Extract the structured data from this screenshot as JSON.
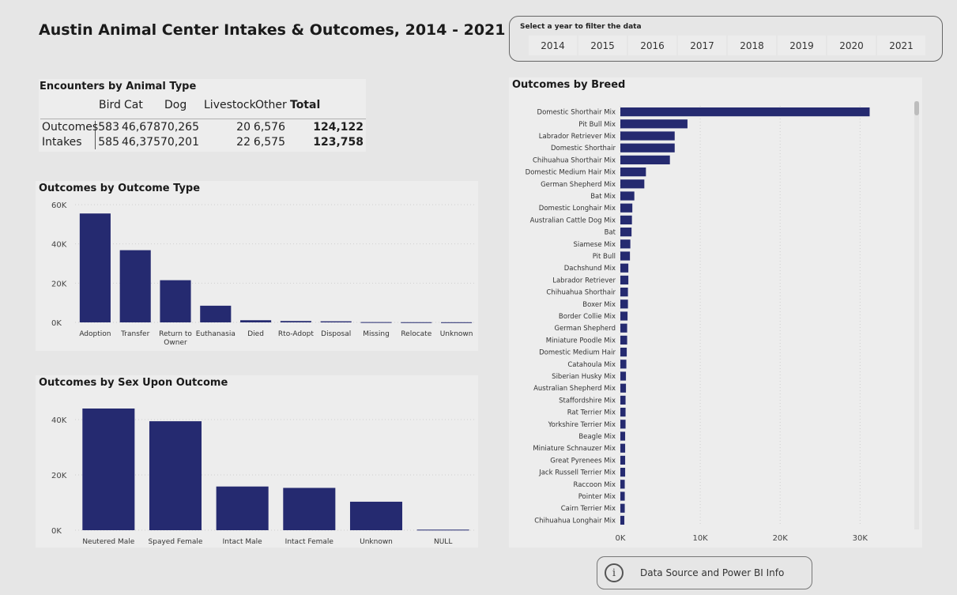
{
  "title": "Austin Animal Center Intakes & Outcomes, 2014 - 2021",
  "slicer": {
    "label": "Select a year to filter the data",
    "years": [
      "2014",
      "2015",
      "2016",
      "2017",
      "2018",
      "2019",
      "2020",
      "2021"
    ]
  },
  "encounters": {
    "title": "Encounters by Animal Type",
    "headers": [
      "Bird",
      "Cat",
      "Dog",
      "Livestock",
      "Other",
      "Total"
    ],
    "rows": [
      {
        "label": "Outcomes",
        "values": [
          "583",
          "46,678",
          "70,265",
          "20",
          "6,576",
          "124,122"
        ]
      },
      {
        "label": "Intakes",
        "values": [
          "585",
          "46,375",
          "70,201",
          "22",
          "6,575",
          "123,758"
        ]
      }
    ]
  },
  "info_button": {
    "label": "Data Source and Power BI Info",
    "icon": "info-icon"
  },
  "colors": {
    "bar": "#252a70",
    "grid": "#cfcfcf"
  },
  "chart_data": [
    {
      "id": "outcome-type",
      "type": "bar",
      "title": "Outcomes by Outcome Type",
      "categories": [
        "Adoption",
        "Transfer",
        "Return to Owner",
        "Euthanasia",
        "Died",
        "Rto-Adopt",
        "Disposal",
        "Missing",
        "Relocate",
        "Unknown"
      ],
      "values": [
        55500,
        36800,
        21500,
        8500,
        1100,
        700,
        550,
        150,
        100,
        80
      ],
      "yticks": [
        "0K",
        "20K",
        "40K",
        "60K"
      ],
      "ylim": [
        0,
        60000
      ]
    },
    {
      "id": "sex",
      "type": "bar",
      "title": "Outcomes by Sex Upon Outcome",
      "categories": [
        "Neutered Male",
        "Spayed Female",
        "Intact Male",
        "Intact Female",
        "Unknown",
        "NULL"
      ],
      "values": [
        44000,
        39400,
        15800,
        15300,
        10300,
        200
      ],
      "yticks": [
        "0K",
        "20K",
        "40K"
      ],
      "ylim": [
        0,
        46000
      ]
    },
    {
      "id": "breed",
      "type": "bar",
      "orientation": "horizontal",
      "title": "Outcomes by Breed",
      "categories": [
        "Domestic Shorthair Mix",
        "Pit Bull Mix",
        "Labrador Retriever Mix",
        "Domestic Shorthair",
        "Chihuahua Shorthair Mix",
        "Domestic Medium Hair Mix",
        "German Shepherd Mix",
        "Bat Mix",
        "Domestic Longhair Mix",
        "Australian Cattle Dog Mix",
        "Bat",
        "Siamese Mix",
        "Pit Bull",
        "Dachshund Mix",
        "Labrador Retriever",
        "Chihuahua Shorthair",
        "Boxer Mix",
        "Border Collie Mix",
        "German Shepherd",
        "Miniature Poodle Mix",
        "Domestic Medium Hair",
        "Catahoula Mix",
        "Siberian Husky Mix",
        "Australian Shepherd Mix",
        "Staffordshire Mix",
        "Rat Terrier Mix",
        "Yorkshire Terrier Mix",
        "Beagle Mix",
        "Miniature Schnauzer Mix",
        "Great Pyrenees Mix",
        "Jack Russell Terrier Mix",
        "Raccoon Mix",
        "Pointer Mix",
        "Cairn Terrier Mix",
        "Chihuahua Longhair Mix"
      ],
      "values": [
        31200,
        8400,
        6800,
        6800,
        6200,
        3200,
        3000,
        1750,
        1500,
        1450,
        1400,
        1250,
        1200,
        1000,
        1000,
        950,
        950,
        900,
        850,
        850,
        800,
        750,
        700,
        700,
        650,
        650,
        650,
        600,
        600,
        600,
        600,
        550,
        550,
        550,
        500
      ],
      "xticks": [
        "0K",
        "10K",
        "20K",
        "30K"
      ],
      "xlim": [
        0,
        36000
      ]
    }
  ]
}
